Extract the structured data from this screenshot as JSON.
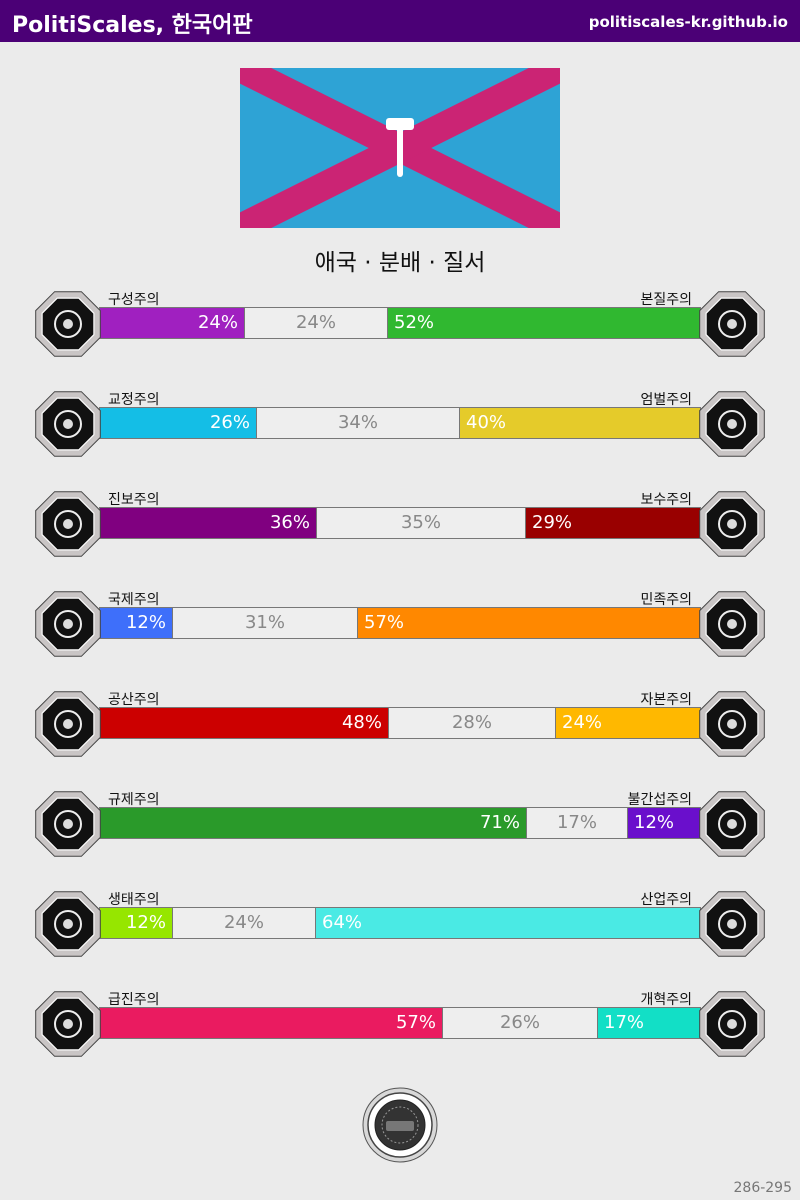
{
  "header": {
    "title": "PolitiScales, 한국어판",
    "url": "politiscales-kr.github.io"
  },
  "flag": {
    "field_color": "#2ea3d5",
    "cross_color": "#cb2474",
    "emblem": "hammer-icon",
    "emblem_color": "#ffffff"
  },
  "ideology": "애국 · 분배 · 질서",
  "chart_data": {
    "type": "bar",
    "stacked": true,
    "axes": [
      {
        "left_label": "구성주의",
        "right_label": "본질주의",
        "left_value": 24,
        "neutral_value": 24,
        "right_value": 52,
        "left_text": "24%",
        "neutral_text": "24%",
        "right_text": "52%",
        "left_color": "#a020c0",
        "right_color": "#30b830",
        "left_icon": "eye-icon",
        "right_icon": "dna-flower-icon"
      },
      {
        "left_label": "교정주의",
        "right_label": "엄벌주의",
        "left_value": 26,
        "neutral_value": 34,
        "right_value": 40,
        "left_text": "26%",
        "neutral_text": "34%",
        "right_text": "40%",
        "left_color": "#14bee6",
        "right_color": "#e5cb2a",
        "left_icon": "handshake-icon",
        "right_icon": "prison-bars-icon"
      },
      {
        "left_label": "진보주의",
        "right_label": "보수주의",
        "left_value": 36,
        "neutral_value": 35,
        "right_value": 29,
        "left_text": "36%",
        "neutral_text": "35%",
        "right_text": "29%",
        "left_color": "#800080",
        "right_color": "#990000",
        "left_icon": "rocket-icon",
        "right_icon": "quill-pen-icon"
      },
      {
        "left_label": "국제주의",
        "right_label": "민족주의",
        "left_value": 12,
        "neutral_value": 31,
        "right_value": 57,
        "left_text": "12%",
        "neutral_text": "31%",
        "right_text": "57%",
        "left_color": "#3e6ffa",
        "right_color": "#ff8800",
        "left_icon": "globe-icon",
        "right_icon": "flag-icon"
      },
      {
        "left_label": "공산주의",
        "right_label": "자본주의",
        "left_value": 48,
        "neutral_value": 28,
        "right_value": 24,
        "left_text": "48%",
        "neutral_text": "28%",
        "right_text": "24%",
        "left_color": "#cc0000",
        "right_color": "#ffb800",
        "left_icon": "hammer-sickle-icon",
        "right_icon": "money-bag-icon"
      },
      {
        "left_label": "규제주의",
        "right_label": "불간섭주의",
        "left_value": 71,
        "neutral_value": 17,
        "right_value": 12,
        "left_text": "71%",
        "neutral_text": "17%",
        "right_text": "12%",
        "left_color": "#2a9a2a",
        "right_color": "#6a0fcc",
        "left_icon": "ruler-icon",
        "right_icon": "butterfly-icon"
      },
      {
        "left_label": "생태주의",
        "right_label": "산업주의",
        "left_value": 12,
        "neutral_value": 24,
        "right_value": 64,
        "left_text": "12%",
        "neutral_text": "24%",
        "right_text": "64%",
        "left_color": "#96e600",
        "right_color": "#4aeae4",
        "left_icon": "sprout-icon",
        "right_icon": "gear-icon"
      },
      {
        "left_label": "급진주의",
        "right_label": "개혁주의",
        "left_value": 57,
        "neutral_value": 26,
        "right_value": 17,
        "left_text": "57%",
        "neutral_text": "26%",
        "right_text": "17%",
        "left_color": "#ea1b60",
        "right_color": "#12dfc6",
        "left_icon": "fist-icon",
        "right_icon": "ballot-box-icon"
      }
    ]
  },
  "seal": {
    "icon": "seal-icon"
  },
  "footer": "286-295"
}
